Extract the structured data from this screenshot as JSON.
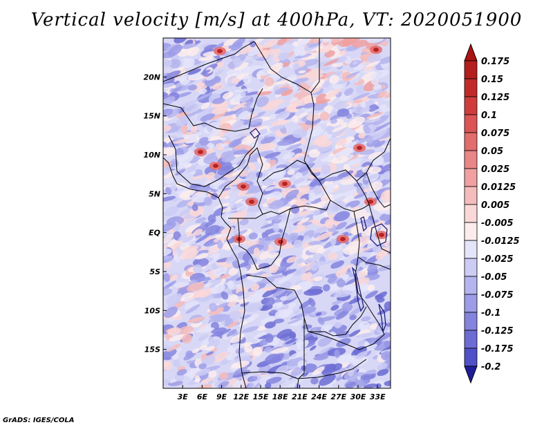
{
  "title": "Vertical velocity [m/s] at 400hPa, VT: 2020051900",
  "credit": "GrADS: IGES/COLA",
  "map": {
    "lon_min": 0,
    "lon_max": 35,
    "lat_min": -20,
    "lat_max": 25,
    "lat_ticks": [
      {
        "value": 20,
        "label": "20N"
      },
      {
        "value": 15,
        "label": "15N"
      },
      {
        "value": 10,
        "label": "10N"
      },
      {
        "value": 5,
        "label": "5N"
      },
      {
        "value": 0,
        "label": "EQ"
      },
      {
        "value": -5,
        "label": "5S"
      },
      {
        "value": -10,
        "label": "10S"
      },
      {
        "value": -15,
        "label": "15S"
      }
    ],
    "lon_ticks": [
      {
        "value": 3,
        "label": "3E"
      },
      {
        "value": 6,
        "label": "6E"
      },
      {
        "value": 9,
        "label": "9E"
      },
      {
        "value": 12,
        "label": "12E"
      },
      {
        "value": 15,
        "label": "15E"
      },
      {
        "value": 18,
        "label": "18E"
      },
      {
        "value": 21,
        "label": "21E"
      },
      {
        "value": 24,
        "label": "24E"
      },
      {
        "value": 27,
        "label": "27E"
      },
      {
        "value": 30,
        "label": "30E"
      },
      {
        "value": 33,
        "label": "33E"
      }
    ]
  },
  "colorbar": {
    "levels": [
      {
        "label": "0.175",
        "color": "#b41e1e"
      },
      {
        "label": "0.15",
        "color": "#c22a2a"
      },
      {
        "label": "0.125",
        "color": "#d03c3c"
      },
      {
        "label": "0.1",
        "color": "#dc5454"
      },
      {
        "label": "0.075",
        "color": "#e36c6c"
      },
      {
        "label": "0.05",
        "color": "#ea8686"
      },
      {
        "label": "0.025",
        "color": "#f0a0a0"
      },
      {
        "label": "0.0125",
        "color": "#f5bcbc"
      },
      {
        "label": "0.005",
        "color": "#fad8d8"
      },
      {
        "label": "-0.005",
        "color": "#fbeded"
      },
      {
        "label": "-0.0125",
        "color": "#e4e4fa"
      },
      {
        "label": "-0.025",
        "color": "#ccccf4"
      },
      {
        "label": "-0.05",
        "color": "#b4b4ee"
      },
      {
        "label": "-0.075",
        "color": "#9c9ce8"
      },
      {
        "label": "-0.1",
        "color": "#8484de"
      },
      {
        "label": "-0.125",
        "color": "#6c6cd4"
      },
      {
        "label": "-0.175",
        "color": "#5050c8"
      },
      {
        "label": "-0.2",
        "color": "#3232b4"
      }
    ],
    "top_arrow_color": "#aa1414",
    "bottom_arrow_color": "#1e1e9a"
  },
  "colors": {
    "frame": "#000000",
    "border": "#000000",
    "water": "#1e1e78"
  }
}
